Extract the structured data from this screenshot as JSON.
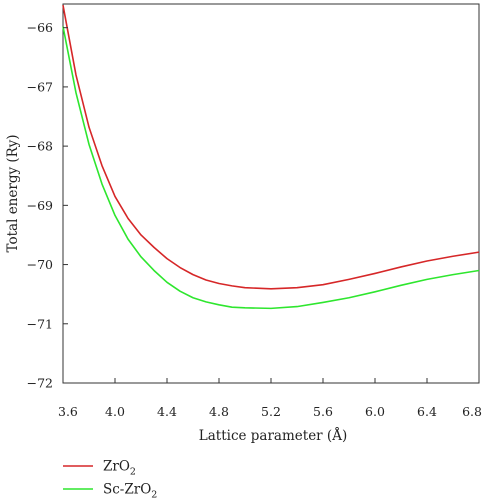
{
  "chart_data": {
    "type": "line",
    "title": "",
    "xlabel": "Lattice parameter (Å)",
    "ylabel": "Total energy (Ry)",
    "xlim": [
      3.6,
      6.8
    ],
    "ylim": [
      -72,
      -65.6
    ],
    "xticks": [
      3.6,
      4.0,
      4.4,
      4.8,
      5.2,
      5.6,
      6.0,
      6.4,
      6.8
    ],
    "xtick_labels": [
      "3.6",
      "4.0",
      "4.4",
      "4.8",
      "5.2",
      "5.6",
      "6.0",
      "6.4",
      "6.8"
    ],
    "yticks": [
      -66,
      -67,
      -68,
      -69,
      -70,
      -71,
      -72
    ],
    "ytick_labels": [
      "−66",
      "−67",
      "−68",
      "−69",
      "−70",
      "−71",
      "−72"
    ],
    "grid": false,
    "legend_position": "bottom-left, below plot",
    "series": [
      {
        "name": "ZrO2",
        "legend_main": "ZrO",
        "legend_sub": "2",
        "color": "#d62728",
        "x": [
          3.6,
          3.7,
          3.8,
          3.9,
          4.0,
          4.1,
          4.2,
          4.3,
          4.4,
          4.5,
          4.6,
          4.7,
          4.8,
          4.9,
          5.0,
          5.2,
          5.4,
          5.6,
          5.8,
          6.0,
          6.2,
          6.4,
          6.6,
          6.8
        ],
        "y": [
          -65.62,
          -66.8,
          -67.68,
          -68.33,
          -68.85,
          -69.22,
          -69.5,
          -69.71,
          -69.9,
          -70.05,
          -70.17,
          -70.26,
          -70.32,
          -70.36,
          -70.39,
          -70.41,
          -70.39,
          -70.34,
          -70.25,
          -70.15,
          -70.04,
          -69.94,
          -69.86,
          -69.79
        ]
      },
      {
        "name": "Sc-ZrO2",
        "legend_main": "Sc-ZrO",
        "legend_sub": "2",
        "color": "#2ee62e",
        "x": [
          3.6,
          3.7,
          3.8,
          3.9,
          4.0,
          4.1,
          4.2,
          4.3,
          4.4,
          4.5,
          4.6,
          4.7,
          4.8,
          4.9,
          5.0,
          5.2,
          5.4,
          5.6,
          5.8,
          6.0,
          6.2,
          6.4,
          6.6,
          6.8
        ],
        "y": [
          -65.98,
          -67.1,
          -67.97,
          -68.64,
          -69.17,
          -69.57,
          -69.87,
          -70.1,
          -70.3,
          -70.45,
          -70.56,
          -70.63,
          -70.68,
          -70.72,
          -70.73,
          -70.74,
          -70.71,
          -70.64,
          -70.56,
          -70.46,
          -70.35,
          -70.25,
          -70.17,
          -70.1
        ]
      }
    ]
  }
}
